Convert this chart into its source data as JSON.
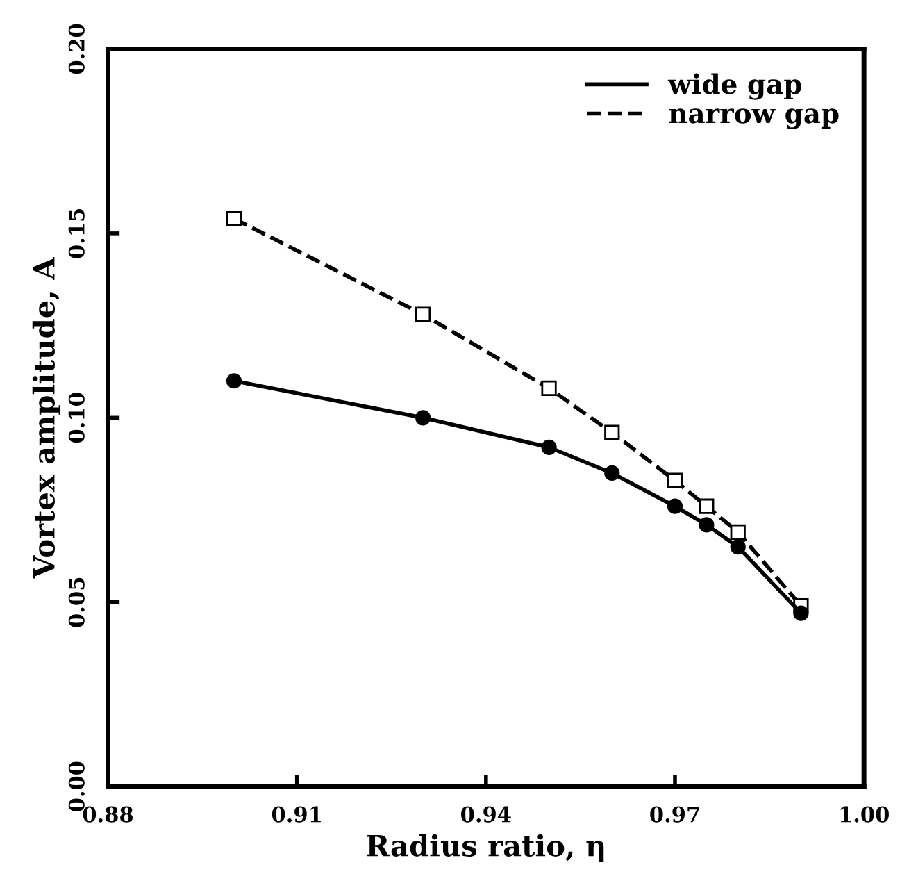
{
  "chart_data": {
    "type": "line",
    "xlabel": "Radius ratio, η",
    "ylabel": "Vortex amplitude, A",
    "series": [
      {
        "name": "wide gap",
        "color": "#000000",
        "line_style": "solid",
        "marker": "circle",
        "x": [
          0.9,
          0.93,
          0.95,
          0.96,
          0.97,
          0.975,
          0.98,
          0.99
        ],
        "values": [
          0.11,
          0.1,
          0.092,
          0.085,
          0.076,
          0.071,
          0.065,
          0.047
        ]
      },
      {
        "name": "narrow gap",
        "color": "#000000",
        "line_style": "dashed",
        "marker": "square",
        "x": [
          0.9,
          0.93,
          0.95,
          0.96,
          0.97,
          0.975,
          0.98,
          0.99
        ],
        "values": [
          0.154,
          0.128,
          0.108,
          0.096,
          0.083,
          0.076,
          0.069,
          0.049
        ]
      }
    ],
    "xlim": [
      0.88,
      1.0
    ],
    "xticks": [
      {
        "value": 0.88,
        "label": "0.88"
      },
      {
        "value": 0.91,
        "label": "0.91"
      },
      {
        "value": 0.94,
        "label": "0.94"
      },
      {
        "value": 0.97,
        "label": "0.97"
      },
      {
        "value": 1.0,
        "label": "1.00"
      }
    ],
    "ylim": [
      0.0,
      0.2
    ],
    "yticks": [
      {
        "value": 0.0,
        "label": "0.00"
      },
      {
        "value": 0.05,
        "label": "0.05"
      },
      {
        "value": 0.1,
        "label": "0.10"
      },
      {
        "value": 0.15,
        "label": "0.15"
      },
      {
        "value": 0.2,
        "label": "0.20"
      }
    ],
    "grid": false,
    "legend": "top right"
  }
}
